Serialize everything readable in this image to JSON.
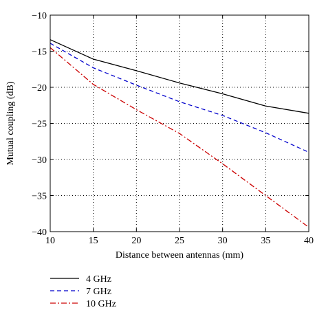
{
  "chart_data": {
    "type": "line",
    "xlabel": "Distance between antennas (mm)",
    "ylabel": "Mutual coupling (dB)",
    "xlim": [
      10,
      40
    ],
    "ylim": [
      -40,
      -10
    ],
    "xticks": [
      10,
      15,
      20,
      25,
      30,
      35,
      40
    ],
    "yticks": [
      -10,
      -15,
      -20,
      -25,
      -30,
      -35,
      -40
    ],
    "grid": true,
    "grid_style": "dotted",
    "legend_position": "below-left",
    "series": [
      {
        "name": "4 GHz",
        "color": "#000000",
        "dash": "solid",
        "x": [
          10,
          15,
          20,
          25,
          30,
          35,
          40
        ],
        "y": [
          -13.4,
          -16.1,
          -17.7,
          -19.4,
          -20.9,
          -22.6,
          -23.6
        ]
      },
      {
        "name": "7 GHz",
        "color": "#0000cc",
        "dash": "dashed",
        "x": [
          10,
          15,
          20,
          25,
          30,
          35,
          40
        ],
        "y": [
          -13.9,
          -17.3,
          -19.7,
          -22.0,
          -23.9,
          -26.3,
          -29.0
        ]
      },
      {
        "name": "10 GHz",
        "color": "#cc0000",
        "dash": "dashdot",
        "x": [
          10,
          15,
          20,
          25,
          30,
          35,
          40
        ],
        "y": [
          -14.5,
          -19.6,
          -23.1,
          -26.4,
          -30.6,
          -35.0,
          -39.4
        ]
      }
    ]
  }
}
